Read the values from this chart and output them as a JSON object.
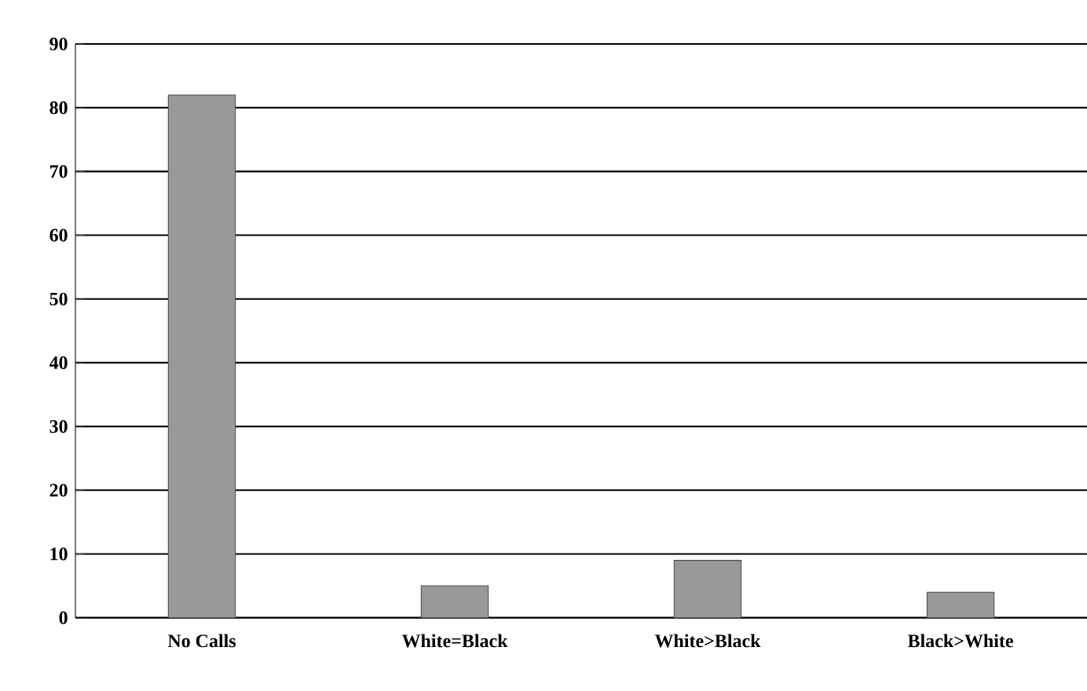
{
  "chart_data": {
    "type": "bar",
    "categories": [
      "No Calls",
      "White=Black",
      "White>Black",
      "Black>White"
    ],
    "values": [
      82,
      5,
      9,
      4
    ],
    "color": "#999999",
    "ylim": [
      0,
      90
    ],
    "yticks": [
      0,
      10,
      20,
      30,
      40,
      50,
      60,
      70,
      80,
      90
    ],
    "grid": "y"
  }
}
